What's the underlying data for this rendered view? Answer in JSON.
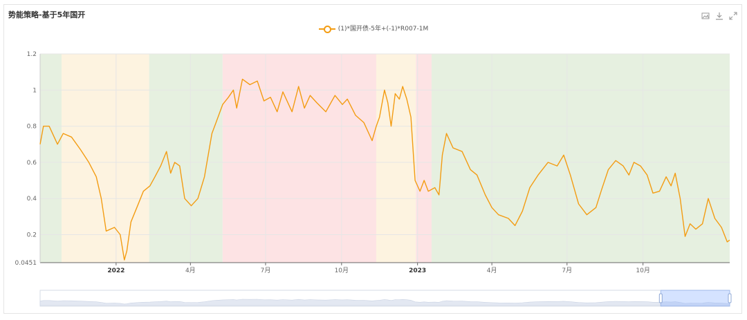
{
  "chart_title": "势能策略-基于5年国开",
  "toolbox": [
    "image-icon",
    "download-icon",
    "expand-icon"
  ],
  "colors": {
    "line": "#f39c12",
    "green_band": "#e6f0e0",
    "yellow_band": "#fdf3e0",
    "red_band": "#fde3e4",
    "grid": "#e6e6e6",
    "axis": "#999999"
  },
  "chart_data": {
    "type": "line",
    "title": "",
    "series": [
      {
        "name": "(1)*国开债-5年+(-1)*R007-1M",
        "points": [
          [
            "2021-10-01",
            0.7
          ],
          [
            "2021-10-05",
            0.8
          ],
          [
            "2021-10-12",
            0.8
          ],
          [
            "2021-10-22",
            0.7
          ],
          [
            "2021-10-29",
            0.76
          ],
          [
            "2021-11-08",
            0.74
          ],
          [
            "2021-11-19",
            0.67
          ],
          [
            "2021-11-29",
            0.6
          ],
          [
            "2021-12-08",
            0.52
          ],
          [
            "2021-12-14",
            0.4
          ],
          [
            "2021-12-20",
            0.22
          ],
          [
            "2021-12-30",
            0.24
          ],
          [
            "2022-01-06",
            0.2
          ],
          [
            "2022-01-11",
            0.06
          ],
          [
            "2022-01-14",
            0.11
          ],
          [
            "2022-01-19",
            0.27
          ],
          [
            "2022-01-27",
            0.36
          ],
          [
            "2022-02-03",
            0.44
          ],
          [
            "2022-02-11",
            0.47
          ],
          [
            "2022-02-17",
            0.52
          ],
          [
            "2022-02-24",
            0.58
          ],
          [
            "2022-03-03",
            0.66
          ],
          [
            "2022-03-08",
            0.54
          ],
          [
            "2022-03-13",
            0.6
          ],
          [
            "2022-03-19",
            0.58
          ],
          [
            "2022-03-25",
            0.4
          ],
          [
            "2022-04-02",
            0.36
          ],
          [
            "2022-04-10",
            0.4
          ],
          [
            "2022-04-18",
            0.52
          ],
          [
            "2022-04-27",
            0.76
          ],
          [
            "2022-05-02",
            0.82
          ],
          [
            "2022-05-10",
            0.92
          ],
          [
            "2022-05-17",
            0.96
          ],
          [
            "2022-05-23",
            1.0
          ],
          [
            "2022-05-27",
            0.9
          ],
          [
            "2022-06-03",
            1.06
          ],
          [
            "2022-06-12",
            1.03
          ],
          [
            "2022-06-21",
            1.05
          ],
          [
            "2022-06-29",
            0.94
          ],
          [
            "2022-07-07",
            0.96
          ],
          [
            "2022-07-15",
            0.88
          ],
          [
            "2022-07-22",
            0.99
          ],
          [
            "2022-08-02",
            0.88
          ],
          [
            "2022-08-10",
            1.02
          ],
          [
            "2022-08-17",
            0.9
          ],
          [
            "2022-08-24",
            0.97
          ],
          [
            "2022-09-01",
            0.93
          ],
          [
            "2022-09-12",
            0.88
          ],
          [
            "2022-09-23",
            0.97
          ],
          [
            "2022-10-02",
            0.92
          ],
          [
            "2022-10-08",
            0.95
          ],
          [
            "2022-10-18",
            0.86
          ],
          [
            "2022-10-28",
            0.82
          ],
          [
            "2022-11-07",
            0.72
          ],
          [
            "2022-11-12",
            0.8
          ],
          [
            "2022-11-16",
            0.85
          ],
          [
            "2022-11-22",
            1.0
          ],
          [
            "2022-11-26",
            0.93
          ],
          [
            "2022-11-30",
            0.8
          ],
          [
            "2022-12-05",
            0.98
          ],
          [
            "2022-12-10",
            0.95
          ],
          [
            "2022-12-14",
            1.02
          ],
          [
            "2022-12-19",
            0.95
          ],
          [
            "2022-12-24",
            0.85
          ],
          [
            "2022-12-29",
            0.5
          ],
          [
            "2023-01-04",
            0.44
          ],
          [
            "2023-01-09",
            0.5
          ],
          [
            "2023-01-14",
            0.44
          ],
          [
            "2023-01-22",
            0.46
          ],
          [
            "2023-01-27",
            0.42
          ],
          [
            "2023-01-31",
            0.64
          ],
          [
            "2023-02-05",
            0.76
          ],
          [
            "2023-02-13",
            0.68
          ],
          [
            "2023-02-24",
            0.66
          ],
          [
            "2023-03-06",
            0.56
          ],
          [
            "2023-03-14",
            0.53
          ],
          [
            "2023-03-24",
            0.42
          ],
          [
            "2023-04-01",
            0.35
          ],
          [
            "2023-04-09",
            0.31
          ],
          [
            "2023-04-21",
            0.29
          ],
          [
            "2023-04-29",
            0.25
          ],
          [
            "2023-05-08",
            0.33
          ],
          [
            "2023-05-17",
            0.46
          ],
          [
            "2023-05-27",
            0.53
          ],
          [
            "2023-06-08",
            0.6
          ],
          [
            "2023-06-19",
            0.58
          ],
          [
            "2023-06-27",
            0.64
          ],
          [
            "2023-07-05",
            0.53
          ],
          [
            "2023-07-15",
            0.37
          ],
          [
            "2023-07-25",
            0.31
          ],
          [
            "2023-08-05",
            0.35
          ],
          [
            "2023-08-12",
            0.45
          ],
          [
            "2023-08-20",
            0.56
          ],
          [
            "2023-08-29",
            0.61
          ],
          [
            "2023-09-07",
            0.58
          ],
          [
            "2023-09-14",
            0.53
          ],
          [
            "2023-09-20",
            0.6
          ],
          [
            "2023-09-28",
            0.58
          ],
          [
            "2023-10-06",
            0.53
          ],
          [
            "2023-10-13",
            0.43
          ],
          [
            "2023-10-21",
            0.44
          ],
          [
            "2023-10-29",
            0.52
          ],
          [
            "2023-11-04",
            0.47
          ],
          [
            "2023-11-09",
            0.54
          ],
          [
            "2023-11-15",
            0.4
          ],
          [
            "2023-11-21",
            0.19
          ],
          [
            "2023-11-27",
            0.26
          ],
          [
            "2023-12-04",
            0.23
          ],
          [
            "2023-12-12",
            0.26
          ],
          [
            "2023-12-19",
            0.4
          ],
          [
            "2023-12-27",
            0.29
          ],
          [
            "2024-01-04",
            0.24
          ],
          [
            "2024-01-11",
            0.16
          ],
          [
            "2024-01-14",
            0.17
          ]
        ]
      }
    ],
    "regimes": [
      {
        "start": "2021-10-01",
        "end": "2021-10-27",
        "state": "green"
      },
      {
        "start": "2021-10-27",
        "end": "2022-02-10",
        "state": "yellow"
      },
      {
        "start": "2022-02-10",
        "end": "2022-05-10",
        "state": "green"
      },
      {
        "start": "2022-05-10",
        "end": "2022-11-12",
        "state": "red"
      },
      {
        "start": "2022-11-12",
        "end": "2022-12-30",
        "state": "yellow"
      },
      {
        "start": "2022-12-30",
        "end": "2023-01-18",
        "state": "red"
      },
      {
        "start": "2023-01-18",
        "end": "2024-01-14",
        "state": "green"
      }
    ],
    "xlim": [
      "2021-10-01",
      "2024-01-14"
    ],
    "ylim": [
      0.0451,
      1.2
    ],
    "y_ticks": [
      0.0451,
      0.2,
      0.4,
      0.6,
      0.8,
      1,
      1.2
    ],
    "y_tick_labels": [
      "0.0451",
      "0.2",
      "0.4",
      "0.6",
      "0.8",
      "1",
      "1.2"
    ],
    "x_ticks": [
      {
        "date": "2022-01-01",
        "label": "2022",
        "bold": true
      },
      {
        "date": "2022-04-01",
        "label": "4月",
        "bold": false
      },
      {
        "date": "2022-07-01",
        "label": "7月",
        "bold": false
      },
      {
        "date": "2022-10-01",
        "label": "10月",
        "bold": false
      },
      {
        "date": "2023-01-01",
        "label": "2023",
        "bold": true
      },
      {
        "date": "2023-04-01",
        "label": "4月",
        "bold": false
      },
      {
        "date": "2023-07-01",
        "label": "7月",
        "bold": false
      },
      {
        "date": "2023-10-01",
        "label": "10月",
        "bold": false
      }
    ],
    "grid": true,
    "legend_position": "top-center",
    "zoom_range": [
      0.9,
      1.0
    ]
  }
}
